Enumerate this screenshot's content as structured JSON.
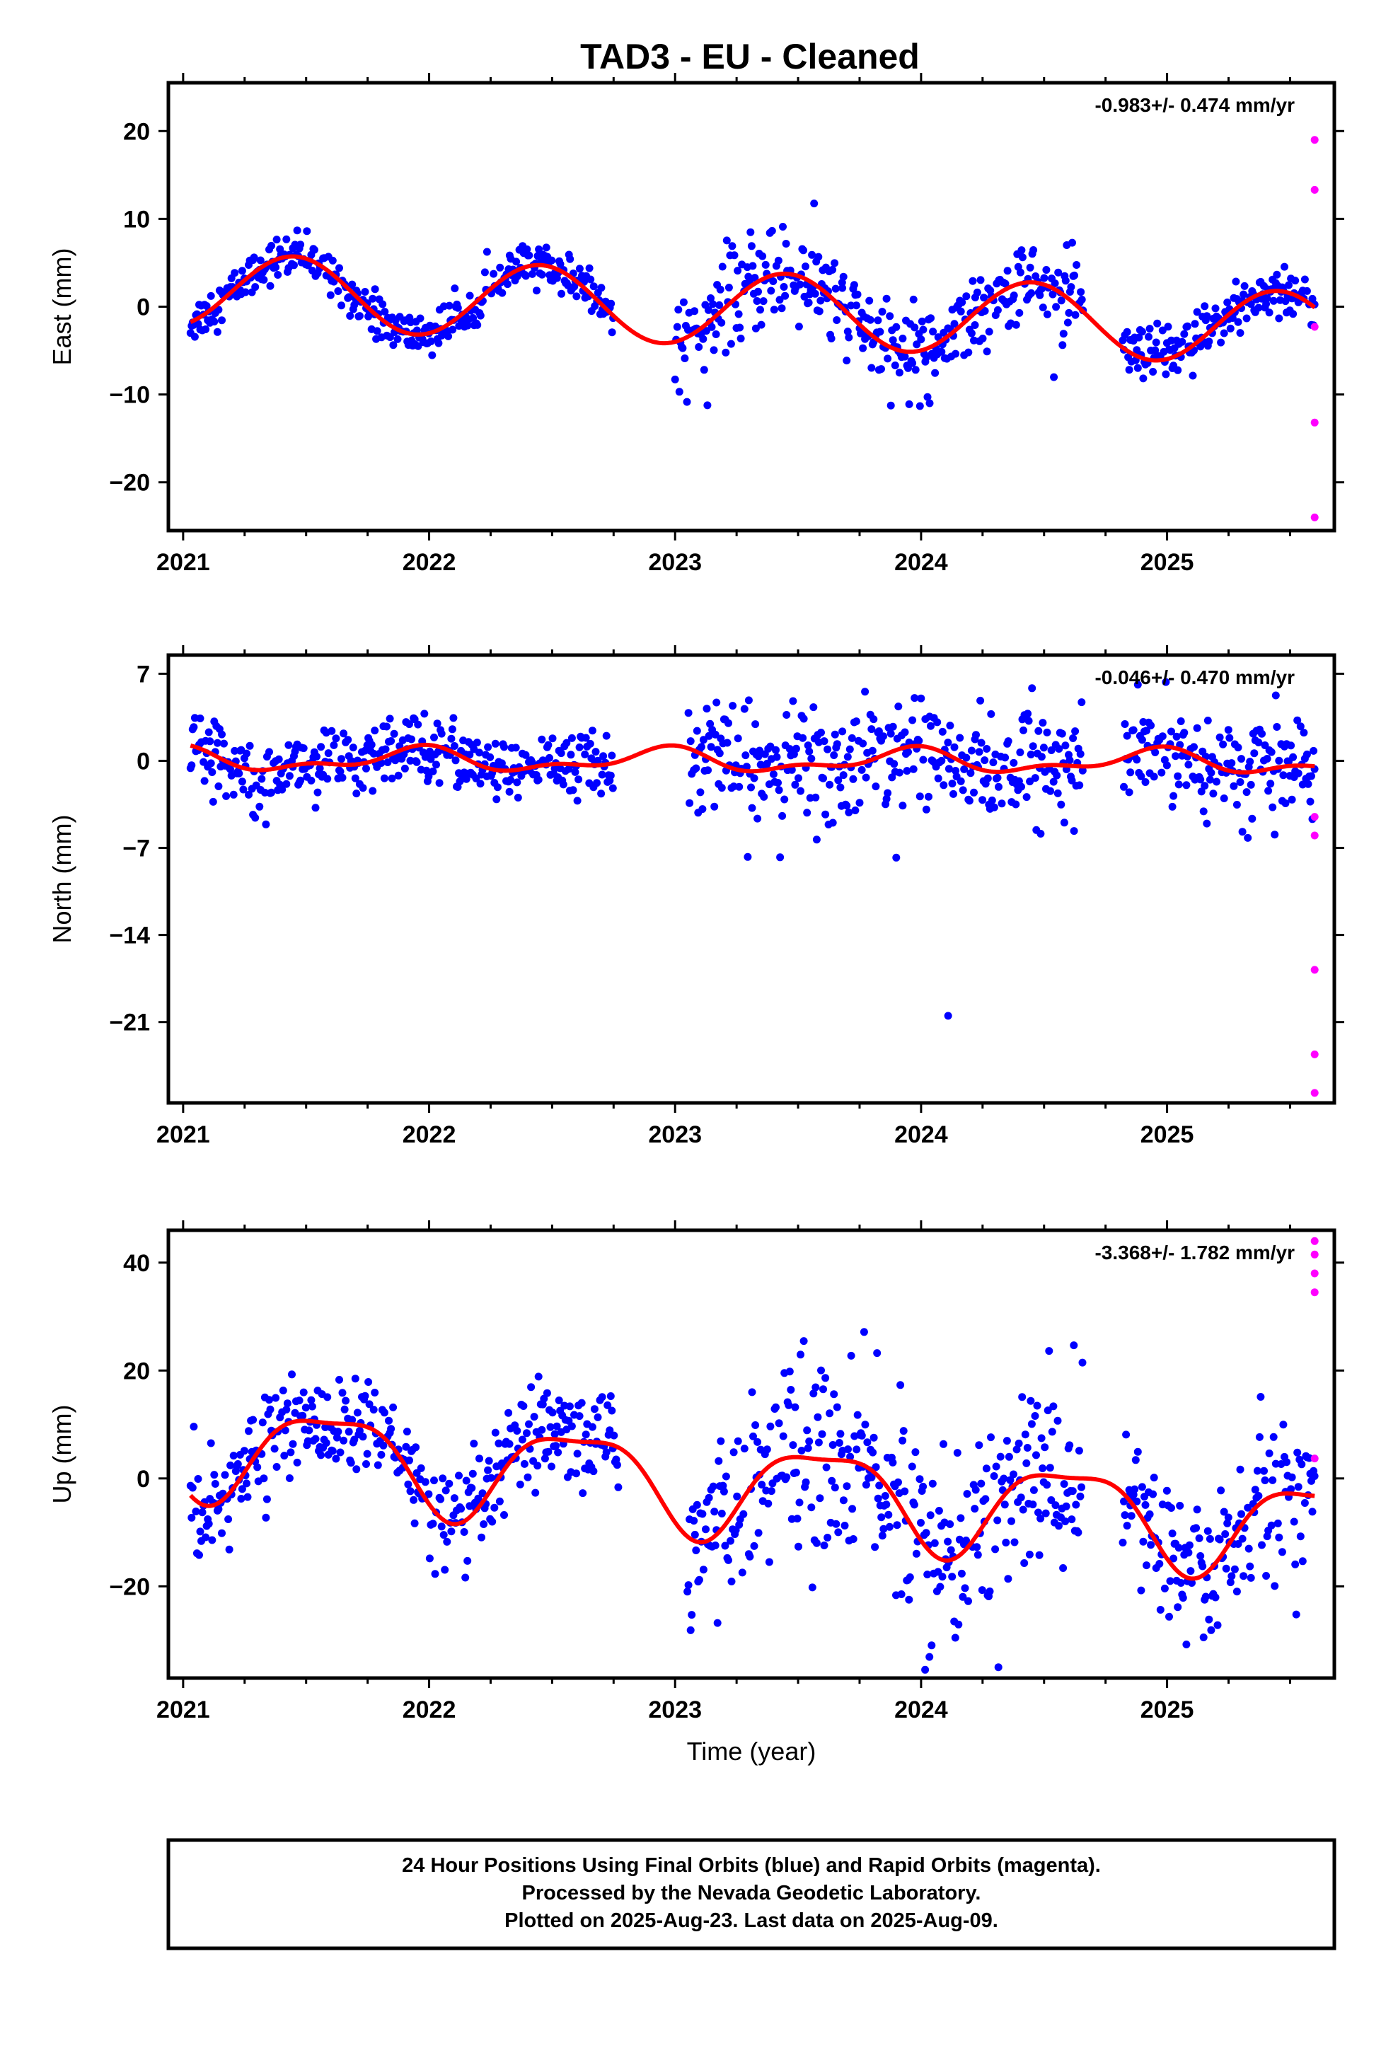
{
  "title": "TAD3  - EU - Cleaned",
  "colors": {
    "final": "#0000ff",
    "rapid": "#ff00ff",
    "model": "#ff0000",
    "frame": "#000000"
  },
  "footer": {
    "line1": "24 Hour Positions Using Final Orbits (blue) and Rapid Orbits (magenta).",
    "line2": "Processed by the Nevada Geodetic Laboratory.",
    "line3": "Plotted on 2025-Aug-23. Last data on 2025-Aug-09."
  },
  "chart_data": [
    {
      "type": "scatter",
      "component": "east",
      "ylabel": "East (mm)",
      "xlabel": "",
      "rate_text": "-0.983+/- 0.474 mm/yr",
      "xlim": [
        2020.94,
        2025.68
      ],
      "ylim": [
        -25.5,
        25.5
      ],
      "xticks": [
        2021,
        2022,
        2023,
        2024,
        2025
      ],
      "xtick_labels": [
        "2021",
        "2022",
        "2023",
        "2024",
        "2025"
      ],
      "yticks": [
        20,
        10,
        0,
        -10,
        -20
      ],
      "ytick_labels": [
        "20",
        "10",
        "0",
        "−10",
        "−20"
      ],
      "model": {
        "offset": -0.3,
        "rate": -0.983,
        "t0": 2023.3,
        "annual_amp": 4.2,
        "annual_phase_year": 2021.45,
        "semi_amp": 0.0,
        "semi_phase_year": 2021.0,
        "t_start": 2021.03,
        "t_end": 2025.6
      },
      "final_data": {
        "segments": [
          [
            2021.03,
            2021.78
          ],
          [
            2021.78,
            2022.75
          ],
          [
            2023.0,
            2023.68
          ],
          [
            2023.68,
            2024.22
          ],
          [
            2024.22,
            2024.66
          ],
          [
            2024.82,
            2025.6
          ]
        ],
        "step_days": 1.6,
        "noise_sd": 1.2,
        "segment_scatter_sd": [
          1.2,
          1.2,
          2.8,
          2.5,
          2.5,
          1.8
        ]
      },
      "rapid_data": {
        "x": [
          2025.6,
          2025.6,
          2025.6,
          2025.6,
          2025.6
        ],
        "y": [
          19.0,
          13.3,
          -2.3,
          -13.2,
          -24.0
        ]
      }
    },
    {
      "type": "scatter",
      "component": "north",
      "ylabel": "North (mm)",
      "xlabel": "",
      "rate_text": "-0.046+/- 0.470 mm/yr",
      "xlim": [
        2020.94,
        2025.68
      ],
      "ylim": [
        -27.5,
        8.5
      ],
      "xticks": [
        2021,
        2022,
        2023,
        2024,
        2025
      ],
      "xtick_labels": [
        "2021",
        "2022",
        "2023",
        "2024",
        "2025"
      ],
      "yticks": [
        7,
        0,
        -7,
        -14,
        -21
      ],
      "ytick_labels": [
        "7",
        "0",
        "−7",
        "−14",
        "−21"
      ],
      "model": {
        "offset": 0.0,
        "rate": -0.046,
        "t0": 2023.3,
        "annual_amp": 0.8,
        "annual_phase_year": 2021.95,
        "semi_amp": 0.45,
        "semi_phase_year": 2021.0,
        "t_start": 2021.03,
        "t_end": 2025.6
      },
      "final_data": {
        "segments": [
          [
            2021.03,
            2022.75
          ],
          [
            2023.05,
            2023.68
          ],
          [
            2023.68,
            2024.66
          ],
          [
            2024.82,
            2025.6
          ]
        ],
        "step_days": 1.6,
        "noise_sd": 1.3,
        "segment_scatter_sd": [
          1.3,
          2.3,
          2.3,
          2.0
        ]
      },
      "outliers": {
        "x": [
          2024.11
        ],
        "y": [
          -20.5
        ]
      },
      "rapid_data": {
        "x": [
          2025.6,
          2025.6,
          2025.6,
          2025.6,
          2025.6
        ],
        "y": [
          -4.5,
          -6.0,
          -16.8,
          -23.6,
          -26.7
        ]
      }
    },
    {
      "type": "scatter",
      "component": "up",
      "ylabel": "Up (mm)",
      "xlabel": "Time (year)",
      "rate_text": "-3.368+/- 1.782 mm/yr",
      "xlim": [
        2020.94,
        2025.68
      ],
      "ylim": [
        -37,
        46
      ],
      "xticks": [
        2021,
        2022,
        2023,
        2024,
        2025
      ],
      "xtick_labels": [
        "2021",
        "2022",
        "2023",
        "2024",
        "2025"
      ],
      "yticks": [
        40,
        20,
        0,
        -20
      ],
      "ytick_labels": [
        "40",
        "20",
        "0",
        "−20"
      ],
      "model": {
        "offset": -1.5,
        "rate": -3.368,
        "t0": 2023.3,
        "annual_amp": 8.5,
        "annual_phase_year": 2021.6,
        "semi_amp": 2.5,
        "semi_phase_year": 2021.35,
        "t_start": 2021.03,
        "t_end": 2025.6
      },
      "final_data": {
        "segments": [
          [
            2021.03,
            2022.77
          ],
          [
            2023.05,
            2023.85
          ],
          [
            2023.85,
            2024.66
          ],
          [
            2024.82,
            2025.6
          ]
        ],
        "step_days": 1.6,
        "noise_sd": 4.5,
        "segment_scatter_sd": [
          4.5,
          9.0,
          9.0,
          8.0
        ]
      },
      "rapid_data": {
        "x": [
          2025.6,
          2025.6,
          2025.6,
          2025.6,
          2025.6
        ],
        "y": [
          44.0,
          41.5,
          38.0,
          34.5,
          3.7
        ]
      }
    }
  ]
}
